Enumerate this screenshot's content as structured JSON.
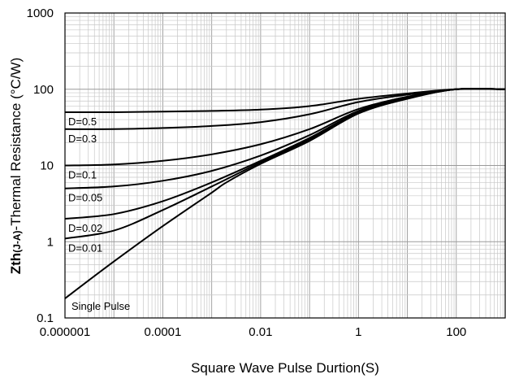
{
  "chart_data": {
    "type": "line",
    "title": "",
    "xlabel": "Square Wave Pulse Durtion(S)",
    "ylabel": {
      "prefix": "Zth",
      "sub": "(J-A)",
      "suffix": "-Thermal  Resistance (°C/W)"
    },
    "x_scale": "log",
    "y_scale": "log",
    "xlim": [
      1e-06,
      1000
    ],
    "ylim": [
      0.1,
      1000
    ],
    "x_ticks": [
      1e-06,
      0.0001,
      0.01,
      1,
      100
    ],
    "x_tick_labels": [
      "0.000001",
      "0.0001",
      "0.01",
      "1",
      "100"
    ],
    "y_ticks": [
      0.1,
      1,
      10,
      100,
      1000
    ],
    "y_tick_labels": [
      "0.1",
      "1",
      "10",
      "100",
      "1000"
    ],
    "grid": true,
    "series": [
      {
        "name": "D=0.5",
        "x": [
          1e-06,
          1e-05,
          0.0001,
          0.001,
          0.01,
          0.1,
          1,
          10,
          100,
          1000
        ],
        "y": [
          50,
          50,
          51,
          52,
          54,
          60,
          75,
          88,
          100,
          100
        ]
      },
      {
        "name": "D=0.3",
        "x": [
          1e-06,
          1e-05,
          0.0001,
          0.001,
          0.01,
          0.1,
          1,
          10,
          100,
          1000
        ],
        "y": [
          30,
          30,
          31,
          33,
          37,
          47,
          68,
          85,
          100,
          100
        ]
      },
      {
        "name": "D=0.1",
        "x": [
          1e-06,
          1e-05,
          0.0001,
          0.001,
          0.01,
          0.1,
          1,
          10,
          100,
          1000
        ],
        "y": [
          10,
          10.3,
          11.5,
          14,
          19,
          30,
          55,
          80,
          100,
          100
        ]
      },
      {
        "name": "D=0.05",
        "x": [
          1e-06,
          1e-05,
          0.0001,
          0.001,
          0.01,
          0.1,
          1,
          10,
          100,
          1000
        ],
        "y": [
          5,
          5.3,
          6.3,
          8.5,
          13.5,
          25,
          52,
          78,
          100,
          100
        ]
      },
      {
        "name": "D=0.02",
        "x": [
          1e-06,
          1e-05,
          0.0001,
          0.001,
          0.01,
          0.1,
          1,
          10,
          100,
          1000
        ],
        "y": [
          2,
          2.3,
          3.4,
          6,
          11.5,
          23,
          50,
          77,
          100,
          100
        ]
      },
      {
        "name": "D=0.01",
        "x": [
          1e-06,
          1e-05,
          0.0001,
          0.001,
          0.01,
          0.1,
          1,
          10,
          100,
          1000
        ],
        "y": [
          1.1,
          1.4,
          2.6,
          5.3,
          11,
          22,
          49,
          76,
          100,
          100
        ]
      },
      {
        "name": "Single Pulse",
        "x": [
          1e-06,
          1e-05,
          0.0001,
          0.001,
          0.002,
          0.01,
          0.1,
          1,
          10,
          100,
          1000
        ],
        "y": [
          0.18,
          0.55,
          1.6,
          4.4,
          6,
          10.5,
          21,
          48,
          75,
          100,
          100
        ]
      }
    ]
  }
}
